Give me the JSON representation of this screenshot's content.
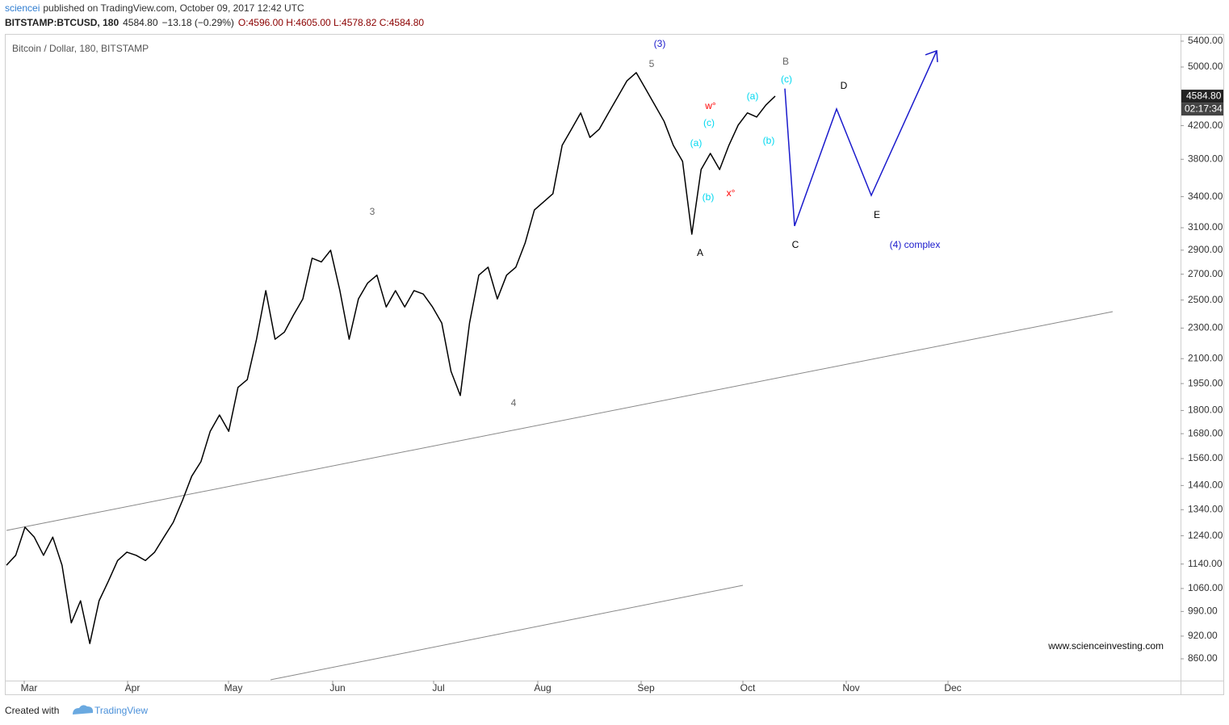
{
  "header": {
    "author": "sciencei",
    "published": "published on TradingView.com, October 09, 2017 12:42 UTC",
    "symbol": "BITSTAMP:BTCUSD, 180",
    "last": "4584.80",
    "change": "−13.18 (−0.29%)",
    "ohlc": "O:4596.00 H:4605.00 L:4578.82 C:4584.80"
  },
  "chart_data": {
    "type": "line",
    "title": "Bitcoin / Dollar, 180, BITSTAMP",
    "log_scale": true,
    "ylim": [
      806,
      5491
    ],
    "yticks": [
      {
        "value": 5400,
        "label": "5400.00"
      },
      {
        "value": 5000,
        "label": "5000.00"
      },
      {
        "value": 4200,
        "label": "4200.00"
      },
      {
        "value": 3800,
        "label": "3800.00"
      },
      {
        "value": 3400,
        "label": "3400.00"
      },
      {
        "value": 3100,
        "label": "3100.00"
      },
      {
        "value": 2900,
        "label": "2900.00"
      },
      {
        "value": 2700,
        "label": "2700.00"
      },
      {
        "value": 2500,
        "label": "2500.00"
      },
      {
        "value": 2300,
        "label": "2300.00"
      },
      {
        "value": 2100,
        "label": "2100.00"
      },
      {
        "value": 1950,
        "label": "1950.00"
      },
      {
        "value": 1800,
        "label": "1800.00"
      },
      {
        "value": 1680,
        "label": "1680.00"
      },
      {
        "value": 1560,
        "label": "1560.00"
      },
      {
        "value": 1440,
        "label": "1440.00"
      },
      {
        "value": 1340,
        "label": "1340.00"
      },
      {
        "value": 1240,
        "label": "1240.00"
      },
      {
        "value": 1140,
        "label": "1140.00"
      },
      {
        "value": 1060,
        "label": "1060.00"
      },
      {
        "value": 990,
        "label": "990.00"
      },
      {
        "value": 920,
        "label": "920.00"
      },
      {
        "value": 860,
        "label": "860.00"
      }
    ],
    "months": [
      "Mar",
      "Apr",
      "May",
      "Jun",
      "Jul",
      "Aug",
      "Sep",
      "Oct",
      "Nov",
      "Dec"
    ],
    "series": [
      {
        "name": "BTCUSD",
        "color": "#000000",
        "values": [
          1136,
          1170,
          1272,
          1235,
          1170,
          1235,
          1136,
          957,
          1022,
          900,
          1022,
          1083,
          1152,
          1181,
          1170,
          1152,
          1181,
          1235,
          1290,
          1377,
          1480,
          1546,
          1692,
          1776,
          1692,
          1928,
          1973,
          2225,
          2571,
          2225,
          2272,
          2392,
          2508,
          2831,
          2800,
          2899,
          2571,
          2225,
          2508,
          2630,
          2692,
          2449,
          2571,
          2449,
          2571,
          2545,
          2449,
          2335,
          2022,
          1882,
          2335,
          2692,
          2757,
          2508,
          2692,
          2757,
          2962,
          3268,
          3348,
          3430,
          3961,
          4155,
          4362,
          4055,
          4155,
          4362,
          4575,
          4800,
          4917,
          4688,
          4466,
          4255,
          3961,
          3776,
          3041,
          3686,
          3867,
          3686,
          3961,
          4206,
          4362,
          4309,
          4466,
          4585
        ]
      },
      {
        "name": "projection",
        "color": "#1a1acc",
        "values": [
          4690,
          3116,
          4413,
          3413,
          5247
        ]
      }
    ],
    "last_price": {
      "value": 4584.8,
      "label": "4584.80"
    },
    "countdown": "02:17:34",
    "annotations": [
      {
        "text": "(3)",
        "color": "#1a1acc"
      },
      {
        "text": "5",
        "color": "#666666"
      },
      {
        "text": "3",
        "color": "#666666"
      },
      {
        "text": "4",
        "color": "#666666"
      },
      {
        "text": "A",
        "color": "#000000"
      },
      {
        "text": "B",
        "color": "#666666"
      },
      {
        "text": "(c)",
        "color": "#00d8f0"
      },
      {
        "text": "D",
        "color": "#000000"
      },
      {
        "text": "C",
        "color": "#000000"
      },
      {
        "text": "E",
        "color": "#000000"
      },
      {
        "text": "(4) complex",
        "color": "#1a1acc"
      },
      {
        "text": "w°",
        "color": "#ff0000"
      },
      {
        "text": "x°",
        "color": "#ff0000"
      },
      {
        "text": "(a)",
        "color": "#00d8f0"
      },
      {
        "text": "(c)",
        "color": "#00d8f0"
      },
      {
        "text": "(b)",
        "color": "#00d8f0"
      },
      {
        "text": "(a)",
        "color": "#00d8f0"
      },
      {
        "text": "(b)",
        "color": "#00d8f0"
      }
    ],
    "watermark": "www.scienceinvesting.com"
  },
  "footer": {
    "created": "Created with",
    "brand": "TradingView"
  }
}
